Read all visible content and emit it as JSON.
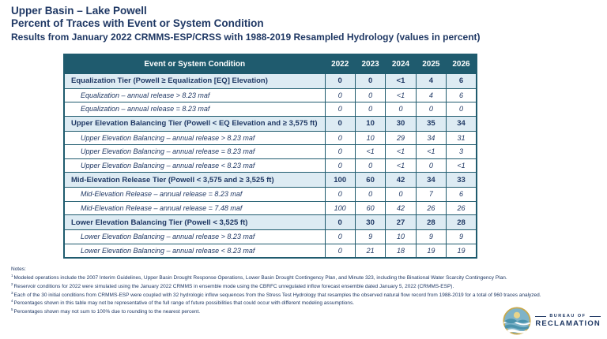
{
  "header": {
    "title_line1": "Upper Basin – Lake Powell",
    "title_line2": "Percent of Traces with Event or System Condition",
    "subtitle": "Results from January 2022 CRMMS-ESP/CRSS with 1988-2019 Resampled Hydrology (values in percent)"
  },
  "table": {
    "columns": [
      "Event or System Condition",
      "2022",
      "2023",
      "2024",
      "2025",
      "2026"
    ],
    "rows": [
      {
        "label": "Equalization Tier (Powell ≥ Equalization [EQ] Elevation)",
        "type": "tier",
        "values": [
          "0",
          "0",
          "<1",
          "4",
          "6"
        ]
      },
      {
        "label": "Equalization – annual release > 8.23 maf",
        "type": "sub",
        "values": [
          "0",
          "0",
          "<1",
          "4",
          "6"
        ]
      },
      {
        "label": "Equalization – annual release = 8.23 maf",
        "type": "sub",
        "values": [
          "0",
          "0",
          "0",
          "0",
          "0"
        ]
      },
      {
        "label": "Upper Elevation Balancing Tier (Powell < EQ Elevation and ≥ 3,575 ft)",
        "type": "tier",
        "values": [
          "0",
          "10",
          "30",
          "35",
          "34"
        ]
      },
      {
        "label": "Upper Elevation Balancing – annual release > 8.23 maf",
        "type": "sub",
        "values": [
          "0",
          "10",
          "29",
          "34",
          "31"
        ]
      },
      {
        "label": "Upper Elevation Balancing – annual release = 8.23 maf",
        "type": "sub",
        "values": [
          "0",
          "<1",
          "<1",
          "<1",
          "3"
        ]
      },
      {
        "label": "Upper Elevation Balancing – annual release < 8.23 maf",
        "type": "sub",
        "values": [
          "0",
          "0",
          "<1",
          "0",
          "<1"
        ]
      },
      {
        "label": "Mid-Elevation Release Tier (Powell < 3,575 and ≥ 3,525 ft)",
        "type": "tier",
        "values": [
          "100",
          "60",
          "42",
          "34",
          "33"
        ]
      },
      {
        "label": "Mid-Elevation Release – annual release = 8.23 maf",
        "type": "sub",
        "values": [
          "0",
          "0",
          "0",
          "7",
          "6"
        ]
      },
      {
        "label": "Mid-Elevation Release – annual release = 7.48 maf",
        "type": "sub",
        "values": [
          "100",
          "60",
          "42",
          "26",
          "26"
        ]
      },
      {
        "label": "Lower Elevation Balancing Tier (Powell < 3,525 ft)",
        "type": "tier",
        "values": [
          "0",
          "30",
          "27",
          "28",
          "28"
        ]
      },
      {
        "label": "Lower Elevation Balancing – annual release > 8.23 maf",
        "type": "sub",
        "values": [
          "0",
          "9",
          "10",
          "9",
          "9"
        ]
      },
      {
        "label": "Lower Elevation Balancing – annual release < 8.23 maf",
        "type": "sub",
        "values": [
          "0",
          "21",
          "18",
          "19",
          "19"
        ]
      }
    ]
  },
  "notes": {
    "title": "Notes:",
    "items": [
      {
        "sup": "1",
        "text": "Modeled operations include the 2007 Interim Guidelines, Upper Basin Drought Response Operations, Lower Basin Drought Contingency Plan, and Minute 323, including the Binational Water Scarcity Contingency Plan."
      },
      {
        "sup": "2",
        "text": "Reservoir conditions for 2022 were simulated using the January 2022 CRMMS in ensemble mode using the CBRFC unregulated inflow forecast ensemble dated January 5, 2022 (CRMMS-ESP)."
      },
      {
        "sup": "3",
        "text": "Each of the 30 initial conditions from CRMMS-ESP were coupled with 32 hydrologic inflow sequences from the Stress Test Hydrology that resamples the observed natural flow record from 1988-2019 for a total of 960 traces analyzed."
      },
      {
        "sup": "4",
        "text": "Percentages shown in this table may not be representative of the full range of future possibilities that could occur with different modeling assumptions."
      },
      {
        "sup": "5",
        "text": "Percentages shown may not sum to 100% due to rounding to the nearest percent."
      }
    ]
  },
  "logo": {
    "line1": "BUREAU OF",
    "line2": "RECLAMATION"
  },
  "colors": {
    "navy": "#1F3864",
    "header_bg": "#1F5B6E",
    "tier_bg": "#DDEBF3",
    "border": "#1F5B6E",
    "logo_gold": "#C8A84B",
    "logo_teal": "#4B93AD"
  }
}
